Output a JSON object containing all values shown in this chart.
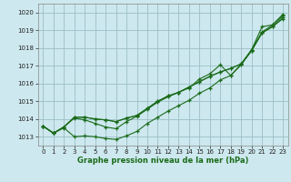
{
  "xlabel": "Graphe pression niveau de la mer (hPa)",
  "xlim": [
    -0.5,
    23.5
  ],
  "ylim": [
    1012.5,
    1020.5
  ],
  "yticks": [
    1013,
    1014,
    1015,
    1016,
    1017,
    1018,
    1019,
    1020
  ],
  "xticks": [
    0,
    1,
    2,
    3,
    4,
    5,
    6,
    7,
    8,
    9,
    10,
    11,
    12,
    13,
    14,
    15,
    16,
    17,
    18,
    19,
    20,
    21,
    22,
    23
  ],
  "background_color": "#cde8ee",
  "grid_color": "#9bbfc7",
  "line_color": "#1a6b1a",
  "series": [
    [
      1013.6,
      1013.2,
      1013.5,
      1013.0,
      1013.05,
      1013.0,
      1012.9,
      1012.85,
      1013.05,
      1013.3,
      1013.75,
      1014.1,
      1014.45,
      1014.75,
      1015.05,
      1015.45,
      1015.75,
      1016.2,
      1016.45,
      1017.05,
      1017.85,
      1018.85,
      1019.2,
      1019.65
    ],
    [
      1013.6,
      1013.2,
      1013.55,
      1014.05,
      1013.95,
      1013.75,
      1013.55,
      1013.45,
      1013.85,
      1014.15,
      1014.55,
      1014.95,
      1015.25,
      1015.5,
      1015.75,
      1016.25,
      1016.55,
      1017.05,
      1016.45,
      1017.1,
      1017.85,
      1018.85,
      1019.2,
      1019.75
    ],
    [
      1013.6,
      1013.2,
      1013.55,
      1014.1,
      1014.1,
      1014.0,
      1013.95,
      1013.85,
      1014.05,
      1014.2,
      1014.6,
      1015.0,
      1015.3,
      1015.5,
      1015.8,
      1016.1,
      1016.4,
      1016.65,
      1016.85,
      1017.1,
      1017.9,
      1018.9,
      1019.3,
      1019.85
    ],
    [
      1013.6,
      1013.2,
      1013.55,
      1014.1,
      1014.1,
      1014.0,
      1013.95,
      1013.85,
      1014.05,
      1014.2,
      1014.6,
      1015.0,
      1015.3,
      1015.5,
      1015.8,
      1016.1,
      1016.4,
      1016.65,
      1016.85,
      1017.1,
      1017.9,
      1019.2,
      1019.3,
      1019.9
    ]
  ]
}
